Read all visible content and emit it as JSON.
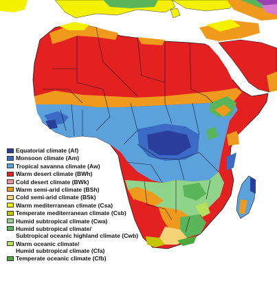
{
  "legend": {
    "items": [
      {
        "label": "Equatorial climate (Af)",
        "color": "#2a3f9c"
      },
      {
        "label": "Monsoon climate (Am)",
        "color": "#3b6bc4"
      },
      {
        "label": "Tropical savanna climate (Aw)",
        "color": "#5ba2dc"
      },
      {
        "label": "Warm desert climate (BWh)",
        "color": "#e32121"
      },
      {
        "label": "Cold desert climate (BWk)",
        "color": "#f2949a"
      },
      {
        "label": "Warm semi-arid climate (BSh)",
        "color": "#f09a1d"
      },
      {
        "label": "Cold semi-arid climate (BSk)",
        "color": "#f6d376"
      },
      {
        "label": "Warm mediterranean climate (Csa)",
        "color": "#f4f100"
      },
      {
        "label": "Temperate mediterranean climate (Csb)",
        "color": "#c6c400"
      },
      {
        "label": "Humid subtropical climate (Cwa)",
        "color": "#8fd48a"
      },
      {
        "label": "Humid subtropical climate/\nSubtropical oceanic highland climate (Cwb)",
        "color": "#5ab55a"
      },
      {
        "label": "Warm oceanic climate/\nHumid subtropical climate (Cfa)",
        "color": "#b5e05b"
      },
      {
        "label": "Temperate oceanic climate (Cfb)",
        "color": "#4caa3c"
      }
    ]
  },
  "colors": {
    "ocean": "#ffffff",
    "border": "#1a1a1a",
    "cold_zone_pink": "#d77ad0",
    "cold_zone_purple": "#9b3fb5"
  }
}
